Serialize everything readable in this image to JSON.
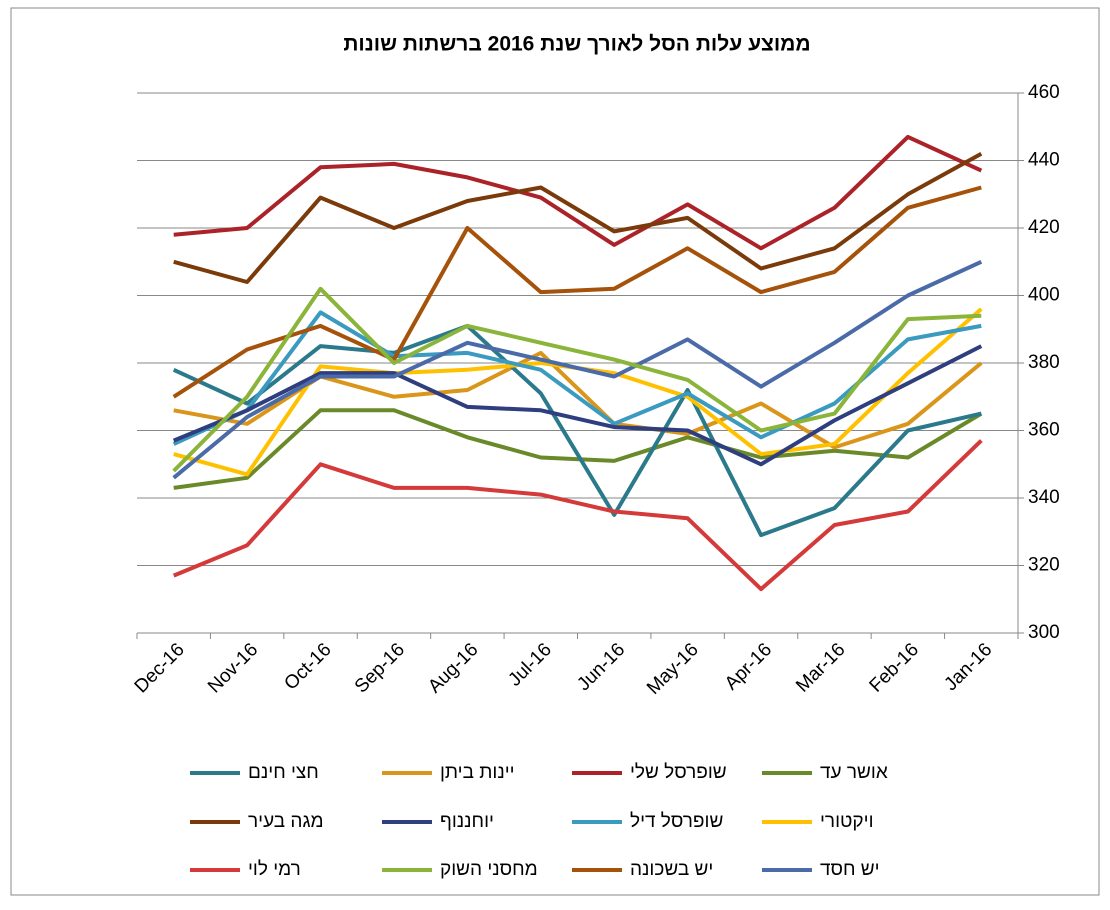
{
  "chart_data": {
    "type": "line",
    "title": "ממוצע עלות הסל לאורך שנת 2016 ברשתות שונות",
    "categories": [
      "Dec-16",
      "Nov-16",
      "Oct-16",
      "Sep-16",
      "Aug-16",
      "Jul-16",
      "Jun-16",
      "May-16",
      "Apr-16",
      "Mar-16",
      "Feb-16",
      "Jan-16"
    ],
    "ylim": [
      300,
      460
    ],
    "yticks": [
      300,
      320,
      340,
      360,
      380,
      400,
      420,
      440,
      460
    ],
    "grid": true,
    "y_axis_side": "right",
    "series": [
      {
        "name": "אושר עד",
        "color": "#6a8a2a",
        "values": [
          343,
          346,
          366,
          366,
          358,
          352,
          351,
          358,
          352,
          354,
          352,
          365
        ]
      },
      {
        "name": "שופרסל שלי",
        "color": "#ab2328",
        "values": [
          418,
          420,
          438,
          439,
          435,
          429,
          415,
          427,
          414,
          426,
          447,
          437
        ]
      },
      {
        "name": "יינות ביתן",
        "color": "#d9961a",
        "values": [
          366,
          362,
          376,
          370,
          372,
          383,
          362,
          359,
          368,
          355,
          362,
          380
        ]
      },
      {
        "name": "חצי חינם",
        "color": "#2a7a8c",
        "values": [
          378,
          368,
          385,
          383,
          391,
          371,
          335,
          372,
          329,
          337,
          360,
          365
        ]
      },
      {
        "name": "ויקטורי",
        "color": "#ffc000",
        "values": [
          353,
          347,
          379,
          377,
          378,
          380,
          377,
          370,
          353,
          356,
          377,
          396
        ]
      },
      {
        "name": "שופרסל דיל",
        "color": "#3a9abf",
        "values": [
          356,
          366,
          395,
          382,
          383,
          378,
          362,
          371,
          358,
          368,
          387,
          391
        ]
      },
      {
        "name": "יוחננוף",
        "color": "#2e3e7e",
        "values": [
          357,
          366,
          377,
          377,
          367,
          366,
          361,
          360,
          350,
          363,
          374,
          385
        ]
      },
      {
        "name": "מגה בעיר",
        "color": "#7a3a0a",
        "values": [
          410,
          404,
          429,
          420,
          428,
          432,
          419,
          423,
          408,
          414,
          430,
          442
        ]
      },
      {
        "name": "יש חסד",
        "color": "#4a6aa8",
        "values": [
          346,
          364,
          376,
          376,
          386,
          381,
          376,
          387,
          373,
          386,
          400,
          410
        ]
      },
      {
        "name": "יש בשכונה",
        "color": "#a5520a",
        "values": [
          370,
          384,
          391,
          381,
          420,
          401,
          402,
          414,
          401,
          407,
          426,
          432
        ]
      },
      {
        "name": "מחסני השוק",
        "color": "#8ab43a",
        "values": [
          348,
          370,
          402,
          380,
          391,
          386,
          381,
          375,
          360,
          365,
          393,
          394
        ]
      },
      {
        "name": "רמי לוי",
        "color": "#d43a3a",
        "values": [
          317,
          326,
          350,
          343,
          343,
          341,
          336,
          334,
          313,
          332,
          336,
          357
        ]
      }
    ]
  }
}
